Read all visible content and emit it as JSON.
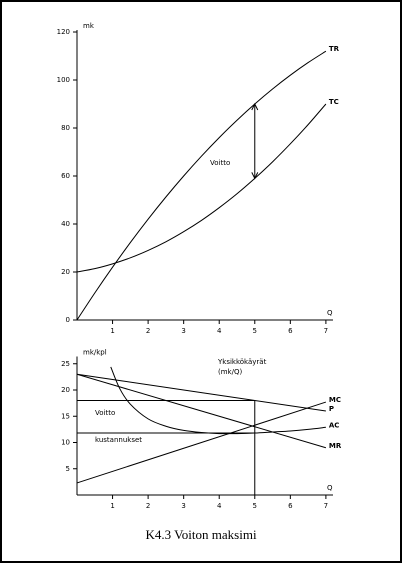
{
  "caption": "K4.3 Voiton maksimi",
  "chart_data": [
    {
      "type": "line",
      "y_label": "mk",
      "x_label": "Q",
      "xlim": [
        0,
        7.2
      ],
      "ylim": [
        0,
        120
      ],
      "xticks": [
        1,
        2,
        3,
        4,
        5,
        6,
        7
      ],
      "yticks": [
        0,
        20,
        40,
        60,
        80,
        100,
        120
      ],
      "series": [
        {
          "name": "TR",
          "color": "#000000",
          "x": [
            0,
            0.5,
            1,
            1.5,
            2,
            2.5,
            3,
            3.5,
            4,
            4.5,
            5,
            5.5,
            6,
            6.5,
            7
          ],
          "values": [
            0,
            11.25,
            22,
            32.25,
            42,
            51.25,
            60,
            68.25,
            76,
            83.25,
            90,
            96.25,
            102,
            107.25,
            112
          ]
        },
        {
          "name": "TC",
          "color": "#000000",
          "x": [
            0,
            0.5,
            1,
            1.5,
            2,
            2.5,
            3,
            3.5,
            4,
            4.5,
            5,
            5.5,
            6,
            6.5,
            7
          ],
          "values": [
            20,
            21.4,
            23.4,
            25.9,
            29,
            32.6,
            36.8,
            41.5,
            46.8,
            52.6,
            59,
            65.9,
            73.4,
            81.4,
            90
          ]
        }
      ],
      "arrow_x": 5,
      "annotations": [
        "Voitto"
      ]
    },
    {
      "type": "line",
      "y_label": "mk/kpl",
      "x_label": "Q",
      "xlim": [
        0,
        7.2
      ],
      "ylim": [
        0,
        26
      ],
      "xticks": [
        1,
        2,
        3,
        4,
        5,
        6,
        7
      ],
      "yticks": [
        5,
        10,
        15,
        20,
        25
      ],
      "series": [
        {
          "name": "MC",
          "color": "#000000",
          "x": [
            0,
            7
          ],
          "values": [
            2.3,
            17.7
          ]
        },
        {
          "name": "P",
          "color": "#000000",
          "x": [
            0,
            7
          ],
          "values": [
            23,
            16
          ]
        },
        {
          "name": "AC",
          "color": "#000000",
          "x": [
            0.95,
            1.2,
            1.5,
            2,
            2.5,
            3,
            3.5,
            4,
            4.5,
            5,
            5.5,
            6,
            6.5,
            7
          ],
          "values": [
            24.4,
            20.3,
            17.3,
            14.5,
            13.1,
            12.3,
            11.9,
            11.7,
            11.7,
            11.8,
            12,
            12.2,
            12.5,
            12.9
          ]
        },
        {
          "name": "MR",
          "color": "#000000",
          "x": [
            0,
            7
          ],
          "values": [
            23,
            9
          ]
        },
        {
          "color": "#000000",
          "x": [
            0,
            5
          ],
          "values": [
            18,
            18
          ]
        },
        {
          "color": "#000000",
          "x": [
            0,
            5
          ],
          "values": [
            11.8,
            11.8
          ]
        },
        {
          "color": "#000000",
          "x": [
            5,
            5
          ],
          "values": [
            0,
            18
          ]
        }
      ],
      "annotations": [
        "Yksikkökäyrät",
        "(mk/Q)",
        "Voitto",
        "kustannukset"
      ]
    }
  ]
}
